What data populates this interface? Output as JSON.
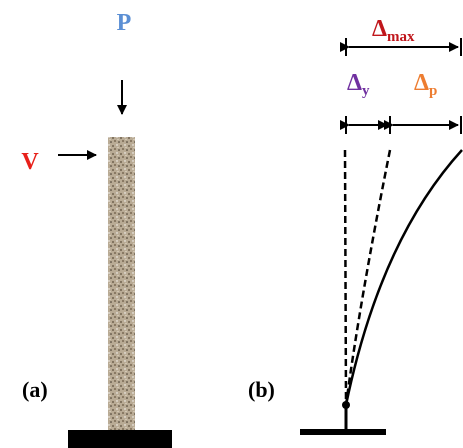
{
  "panel_a": {
    "label": "(a)",
    "axial_load": "P",
    "lateral_load": "V"
  },
  "panel_b": {
    "label": "(b)",
    "max_displacement": {
      "symbol": "Δ",
      "subscript": "max"
    },
    "yield_displacement": {
      "symbol": "Δ",
      "subscript": "y"
    },
    "plastic_displacement": {
      "symbol": "Δ",
      "subscript": "p"
    }
  }
}
